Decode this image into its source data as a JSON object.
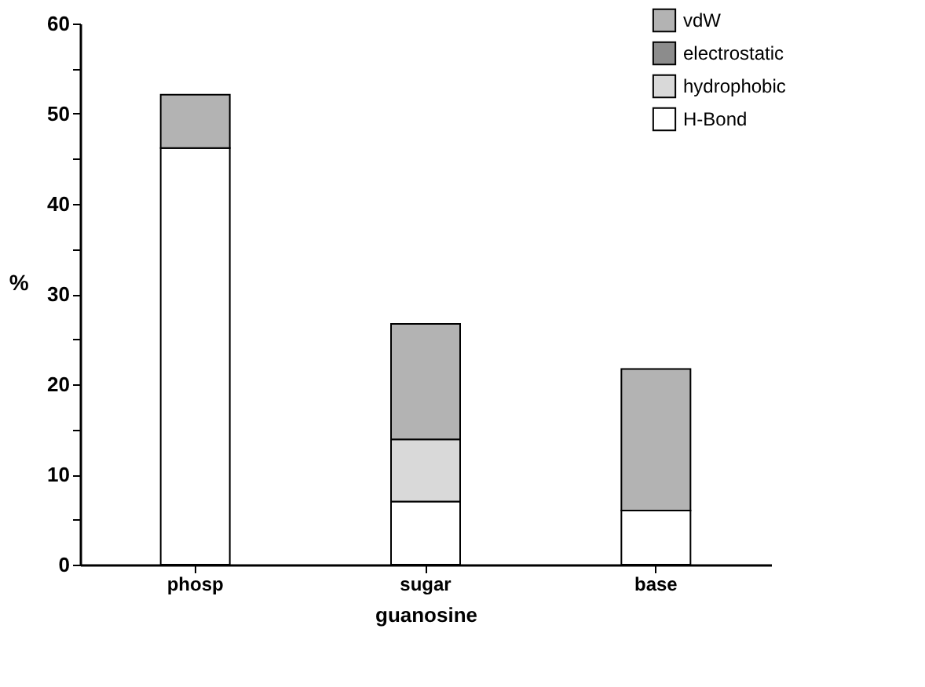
{
  "chart_data": {
    "type": "bar",
    "stacked": true,
    "xlabel": "guanosine",
    "ylabel": "%",
    "categories": [
      "phosp",
      "sugar",
      "base"
    ],
    "series": [
      {
        "name": "H-Bond",
        "color": "#ffffff",
        "values": [
          46.2,
          7.0,
          6.0
        ]
      },
      {
        "name": "hydrophobic",
        "color": "#d9d9d9",
        "values": [
          0,
          6.9,
          0
        ]
      },
      {
        "name": "electrostatic",
        "color": "#8c8c8c",
        "values": [
          0,
          0,
          0
        ]
      },
      {
        "name": "vdW",
        "color": "#b3b3b3",
        "values": [
          5.9,
          12.8,
          15.7
        ]
      }
    ],
    "ylim": [
      0,
      60
    ],
    "yticks": [
      0,
      {
        "value": 5,
        "label": null
      },
      10,
      {
        "value": 15,
        "label": null
      },
      20,
      {
        "value": 25,
        "label": null
      },
      30,
      {
        "value": 35,
        "label": null
      },
      40,
      {
        "value": 45,
        "label": null
      },
      50,
      {
        "value": 55,
        "label": null
      },
      60
    ],
    "grid": false,
    "legend": "top right"
  }
}
